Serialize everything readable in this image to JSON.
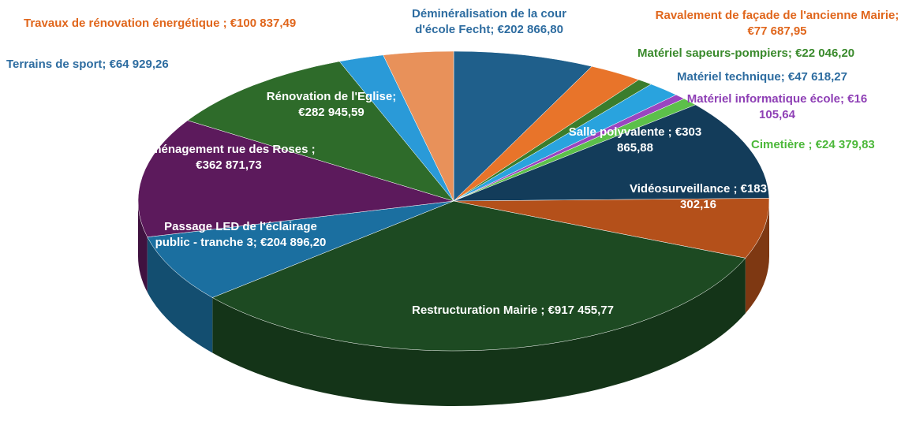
{
  "chart_data": {
    "type": "pie",
    "categories": [
      "Déminéralisation de la cour d'école Fecht;",
      "Ravalement de façade de l'ancienne Mairie;",
      "Matériel  sapeurs-pompiers;",
      "Matériel  technique;",
      "Matériel informatique école;",
      "Cimetière ;",
      "Salle polyvalente ;",
      "Vidéosurveillance ;",
      "Restructuration Mairie ;",
      "Passage LED de l'éclairage public - tranche 3;",
      "Aménagement rue des Roses ;",
      "Rénovation de l'Eglise;",
      "Terrains de sport;",
      "Travaux de rénovation énergétique ;"
    ],
    "values": [
      202866.8,
      77687.95,
      22046.2,
      47618.27,
      16105.64,
      24379.83,
      303865.88,
      183302.16,
      917455.77,
      204896.2,
      362871.73,
      282945.59,
      64929.26,
      100837.49
    ],
    "value_labels": [
      "€202 866,80",
      "€77 687,95",
      "€22 046,20",
      "€47 618,27",
      "€16 105,64",
      "€24 379,83",
      "€303 865,88",
      "€183 302,16",
      "€917 455,77",
      "€204 896,20",
      "€362 871,73",
      "€282 945,59",
      "€64 929,26",
      "€100 837,49"
    ],
    "colors": [
      "#1f5f8b",
      "#e8742a",
      "#3a7d2c",
      "#29a3de",
      "#9a45c0",
      "#5cc04a",
      "#133c5a",
      "#b4501a",
      "#1d4a22",
      "#1b6fa0",
      "#5c1a5c",
      "#2e6b2a",
      "#2a9ad8",
      "#e8915a"
    ]
  }
}
